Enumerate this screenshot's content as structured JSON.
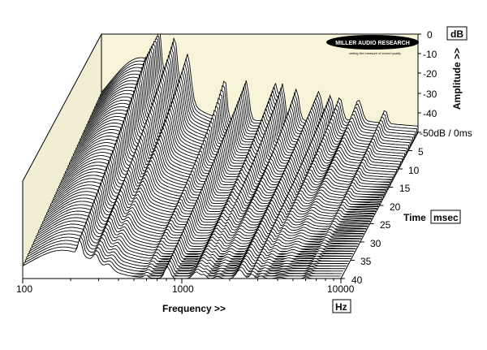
{
  "chart_data": {
    "type": "waterfall",
    "x_axis": {
      "label": "Frequency >>",
      "unit": "Hz",
      "scale": "log",
      "range": [
        100,
        10000
      ],
      "tick_labels": [
        "100",
        "1000",
        "10000"
      ]
    },
    "amplitude_axis": {
      "label": "Amplitude >>",
      "unit": "dB",
      "range": [
        -50,
        0
      ],
      "tick_labels": [
        "0",
        "-10",
        "-20",
        "-30",
        "-40",
        "-50dB / 0ms"
      ]
    },
    "time_axis": {
      "label": "Time",
      "unit": "msec",
      "range": [
        0,
        40
      ],
      "tick_labels": [
        "5",
        "10",
        "15",
        "20",
        "25",
        "30",
        "35",
        "40"
      ]
    },
    "resonance_peaks_hz": [
      230,
      290,
      350,
      600,
      820,
      1250,
      1400,
      1700,
      2350,
      2800,
      3200,
      4200,
      6200
    ],
    "background_color": "#f8f4da",
    "trace_color": "#000000"
  },
  "logo": {
    "text": "MILLER AUDIO RESEARCH",
    "tagline": "setting the measure of sound quality"
  }
}
